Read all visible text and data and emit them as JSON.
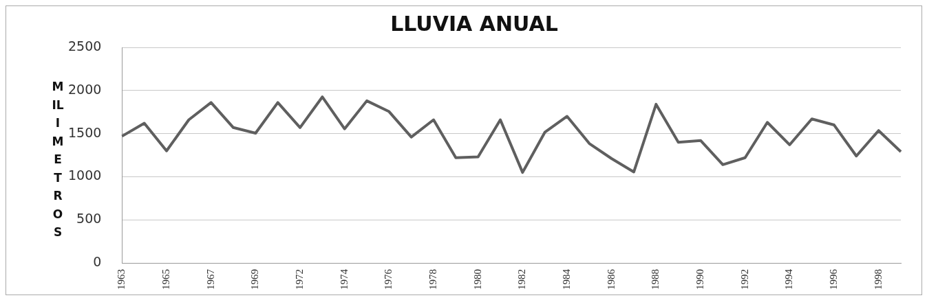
{
  "chart_data": {
    "type": "line",
    "title": "LLUVIA ANUAL",
    "ylabel": "MILIMETROS",
    "categories": [
      "1963",
      null,
      "1965",
      null,
      "1967",
      null,
      "1969",
      null,
      "1972",
      null,
      "1974",
      null,
      "1976",
      null,
      "1978",
      null,
      "1980",
      null,
      "1982",
      null,
      "1984",
      null,
      "1986",
      null,
      "1988",
      null,
      "1990",
      null,
      "1992",
      null,
      "1994",
      null,
      "1996",
      null,
      "1998",
      null
    ],
    "series": [
      {
        "color": "#5f5f5f",
        "values": [
          1470,
          1620,
          1300,
          1660,
          1860,
          1570,
          1505,
          1860,
          1570,
          1925,
          1555,
          1880,
          1755,
          1460,
          1660,
          1220,
          1230,
          1660,
          1050,
          1515,
          1700,
          1385,
          1210,
          1055,
          1840,
          1400,
          1420,
          1140,
          1220,
          1630,
          1370,
          1670,
          1600,
          1240,
          1535,
          1290
        ]
      }
    ],
    "ylim": [
      0,
      2500
    ],
    "yticks": [
      0,
      500,
      1000,
      1500,
      2000,
      2500
    ],
    "grid": "y",
    "legend": false,
    "marker": "none",
    "line_style": "solid"
  }
}
